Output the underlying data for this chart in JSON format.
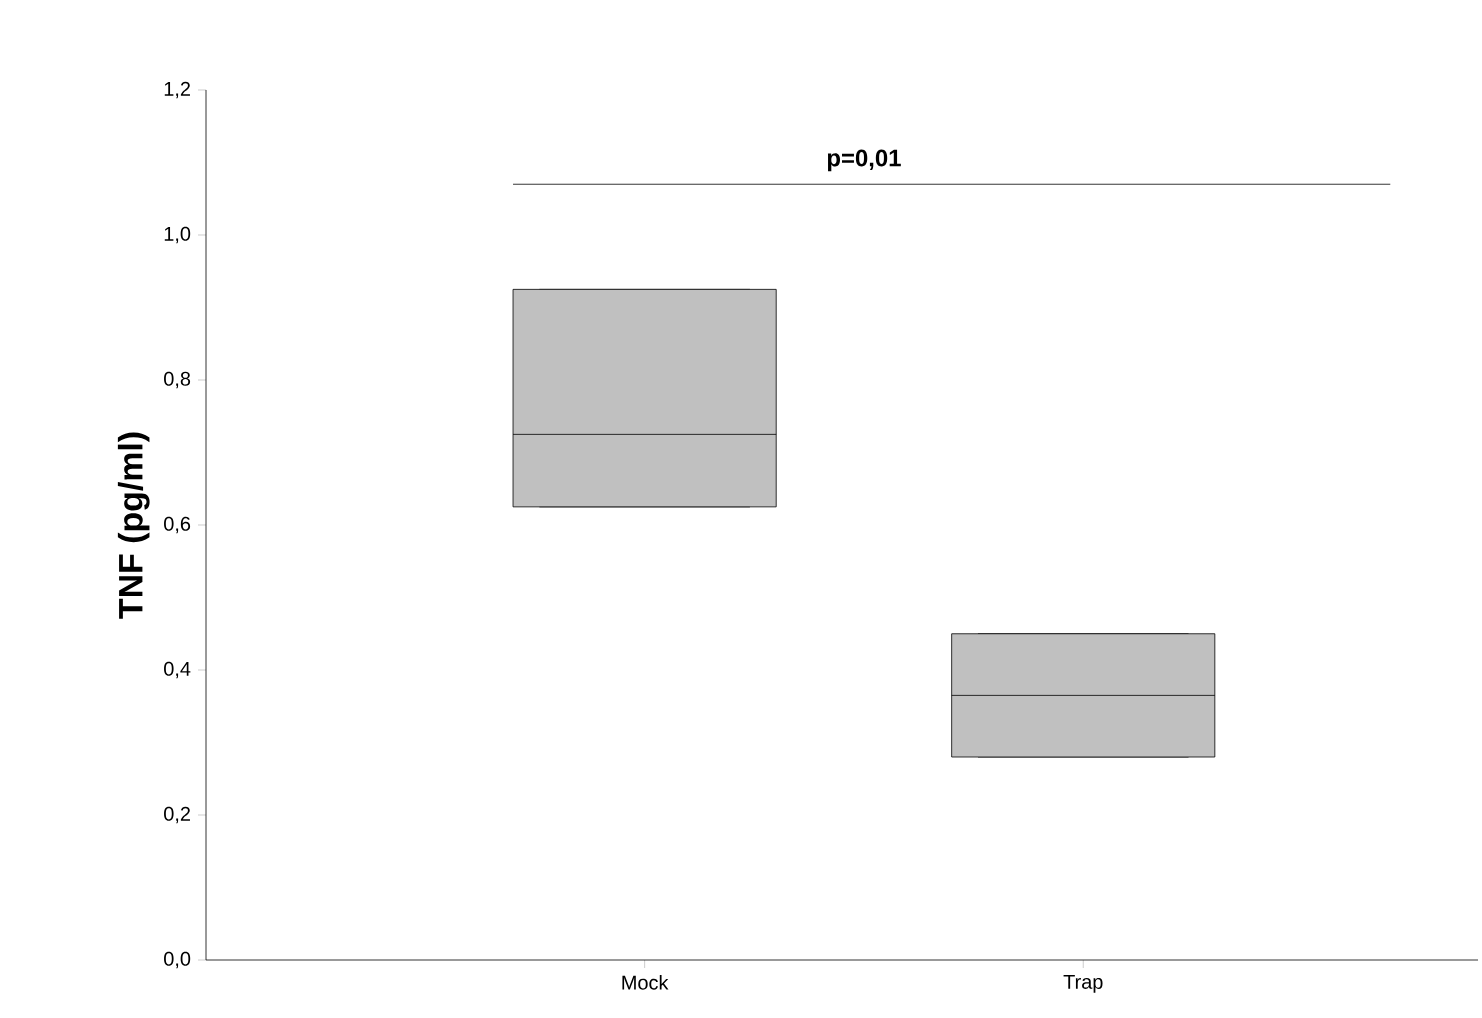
{
  "chart_data": {
    "type": "box",
    "ylabel": "TNF (pg/ml)",
    "categories": [
      "Mock",
      "Trap"
    ],
    "boxes": [
      {
        "low": 0.625,
        "q1": 0.625,
        "median": 0.725,
        "q3": 0.925,
        "high": 0.925
      },
      {
        "low": 0.28,
        "q1": 0.28,
        "median": 0.365,
        "q3": 0.45,
        "high": 0.45
      }
    ],
    "color": "#c0c0c0",
    "ylim": [
      0,
      1.2
    ],
    "yticks": [
      {
        "value": 0,
        "label": "0,0"
      },
      {
        "value": 0.2,
        "label": "0,2"
      },
      {
        "value": 0.4,
        "label": "0,4"
      },
      {
        "value": 0.6,
        "label": "0,6"
      },
      {
        "value": 0.8,
        "label": "0,8"
      },
      {
        "value": 1.0,
        "label": "1,0"
      },
      {
        "value": 1.2,
        "label": "1,2"
      }
    ],
    "ref_lines": [
      {
        "axis": "y",
        "value": 1.07,
        "color": "#000000"
      }
    ],
    "annotations": [
      "p=0,01"
    ]
  }
}
